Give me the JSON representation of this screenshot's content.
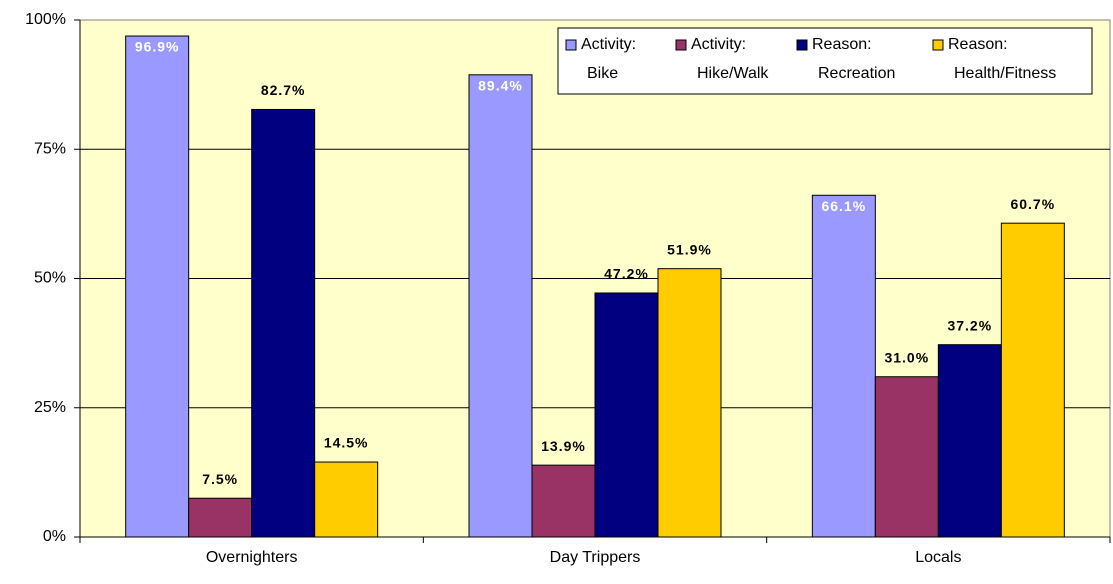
{
  "chart_data": {
    "type": "bar",
    "categories": [
      "Overnighters",
      "Day Trippers",
      "Locals"
    ],
    "series": [
      {
        "name": "Activity: Bike",
        "color": "#9999ff",
        "values": [
          96.9,
          89.4,
          66.1
        ],
        "value_labels": [
          "96.9%",
          "89.4%",
          "66.1%"
        ]
      },
      {
        "name": "Activity: Hike/Walk",
        "color": "#993366",
        "values": [
          7.5,
          13.9,
          31.0
        ],
        "value_labels": [
          "7.5%",
          "13.9%",
          "31.0%"
        ]
      },
      {
        "name": "Reason: Recreation",
        "color": "#000080",
        "values": [
          82.7,
          47.2,
          37.2
        ],
        "value_labels": [
          "82.7%",
          "47.2%",
          "37.2%"
        ]
      },
      {
        "name": "Reason: Health/Fitness",
        "color": "#ffcc00",
        "values": [
          14.5,
          51.9,
          60.7
        ],
        "value_labels": [
          "14.5%",
          "51.9%",
          "60.7%"
        ]
      }
    ],
    "ylim": [
      0,
      100
    ],
    "yticks": [
      {
        "value": 0,
        "label": "0%"
      },
      {
        "value": 25,
        "label": "25%"
      },
      {
        "value": 50,
        "label": "50%"
      },
      {
        "value": 75,
        "label": "75%"
      },
      {
        "value": 100,
        "label": "100%"
      }
    ],
    "grid": true,
    "legend": "top-right"
  }
}
